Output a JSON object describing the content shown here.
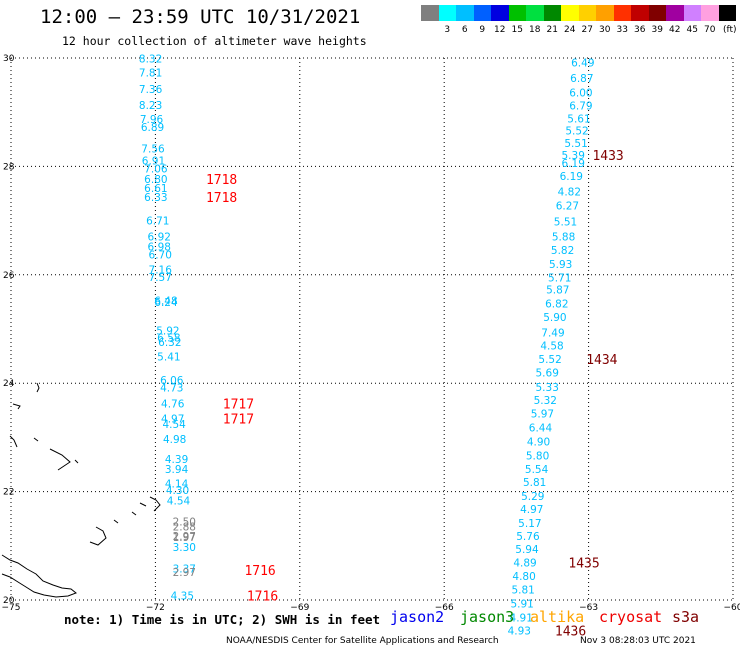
{
  "header": {
    "title": "12:00 — 23:59 UTC 10/31/2021",
    "subtitle": "12 hour collection of altimeter wave heights"
  },
  "colorbar": {
    "unit_label": "(ft)",
    "bins": [
      {
        "label": "",
        "color": "#7f7f7f"
      },
      {
        "label": "3",
        "color": "#00ffff"
      },
      {
        "label": "6",
        "color": "#00bfff"
      },
      {
        "label": "9",
        "color": "#0060ff"
      },
      {
        "label": "12",
        "color": "#0000e0"
      },
      {
        "label": "15",
        "color": "#00c000"
      },
      {
        "label": "18",
        "color": "#00e040"
      },
      {
        "label": "21",
        "color": "#008800"
      },
      {
        "label": "24",
        "color": "#ffff00"
      },
      {
        "label": "27",
        "color": "#ffd000"
      },
      {
        "label": "30",
        "color": "#ffa000"
      },
      {
        "label": "33",
        "color": "#ff3000"
      },
      {
        "label": "36",
        "color": "#c00000"
      },
      {
        "label": "39",
        "color": "#800000"
      },
      {
        "label": "42",
        "color": "#a000a0"
      },
      {
        "label": "45",
        "color": "#d080ff"
      },
      {
        "label": "70",
        "color": "#ffa0e0"
      },
      {
        "label": "",
        "color": "#000000"
      }
    ]
  },
  "map": {
    "lon_ticks": [
      "−75",
      "−72",
      "−69",
      "−66",
      "−63",
      "−60"
    ],
    "lat_ticks": [
      "20",
      "22",
      "24",
      "26",
      "28",
      "30"
    ]
  },
  "track_west": [
    {
      "v": "8.32",
      "lat": 29.99,
      "lon": -72.1
    },
    {
      "v": "7.81",
      "lat": 29.73,
      "lon": -72.1
    },
    {
      "v": "7.36",
      "lat": 29.43,
      "lon": -72.1
    },
    {
      "v": "8.23",
      "lat": 29.13,
      "lon": -72.1
    },
    {
      "v": "7.96",
      "lat": 28.87,
      "lon": -72.08
    },
    {
      "v": "6.89",
      "lat": 28.73,
      "lon": -72.06
    },
    {
      "v": "7.56",
      "lat": 28.33,
      "lon": -72.05
    },
    {
      "v": "6.91",
      "lat": 28.11,
      "lon": -72.04
    },
    {
      "v": "7.06",
      "lat": 27.96,
      "lon": -71.99
    },
    {
      "v": "6.80",
      "lat": 27.77,
      "lon": -71.99
    },
    {
      "v": "6.61",
      "lat": 27.6,
      "lon": -71.99
    },
    {
      "v": "6.33",
      "lat": 27.44,
      "lon": -71.99
    },
    {
      "v": "6.71",
      "lat": 27.0,
      "lon": -71.95
    },
    {
      "v": "6.92",
      "lat": 26.71,
      "lon": -71.92
    },
    {
      "v": "6.98",
      "lat": 26.52,
      "lon": -71.92
    },
    {
      "v": "6.70",
      "lat": 26.37,
      "lon": -71.9
    },
    {
      "v": "7.16",
      "lat": 26.1,
      "lon": -71.9
    },
    {
      "v": "7.57",
      "lat": 25.96,
      "lon": -71.9
    },
    {
      "v": "6.48",
      "lat": 25.53,
      "lon": -71.78
    },
    {
      "v": "6.24",
      "lat": 25.5,
      "lon": -71.78
    },
    {
      "v": "5.92",
      "lat": 24.97,
      "lon": -71.74
    },
    {
      "v": "6.58",
      "lat": 24.84,
      "lon": -71.72
    },
    {
      "v": "6.32",
      "lat": 24.76,
      "lon": -71.7
    },
    {
      "v": "5.41",
      "lat": 24.49,
      "lon": -71.72
    },
    {
      "v": "6.06",
      "lat": 24.06,
      "lon": -71.66
    },
    {
      "v": "4.73",
      "lat": 23.92,
      "lon": -71.66
    },
    {
      "v": "4.76",
      "lat": 23.63,
      "lon": -71.64
    },
    {
      "v": "4.97",
      "lat": 23.35,
      "lon": -71.64
    },
    {
      "v": "4.54",
      "lat": 23.25,
      "lon": -71.61
    },
    {
      "v": "4.98",
      "lat": 22.97,
      "lon": -71.6
    },
    {
      "v": "4.39",
      "lat": 22.6,
      "lon": -71.56
    },
    {
      "v": "3.94",
      "lat": 22.42,
      "lon": -71.56
    },
    {
      "v": "4.14",
      "lat": 22.15,
      "lon": -71.56
    },
    {
      "v": "4.30",
      "lat": 22.03,
      "lon": -71.54
    },
    {
      "v": "4.54",
      "lat": 21.84,
      "lon": -71.52
    },
    {
      "v": "2.50",
      "lat": 21.45,
      "lon": -71.4,
      "gray": true
    },
    {
      "v": "2.88",
      "lat": 21.36,
      "lon": -71.4,
      "gray": true
    },
    {
      "v": "2.97",
      "lat": 21.18,
      "lon": -71.4,
      "gray": true
    },
    {
      "v": "1.97",
      "lat": 21.16,
      "lon": -71.4,
      "gray": true
    },
    {
      "v": "3.30",
      "lat": 20.98,
      "lon": -71.4
    },
    {
      "v": "3.37",
      "lat": 20.58,
      "lon": -71.4
    },
    {
      "v": "2.97",
      "lat": 20.52,
      "lon": -71.4,
      "gray": true
    },
    {
      "v": "4.35",
      "lat": 20.08,
      "lon": -71.44
    }
  ],
  "track_east": [
    {
      "v": "6.49",
      "lat": 29.92,
      "lon": -63.12
    },
    {
      "v": "6.87",
      "lat": 29.63,
      "lon": -63.14
    },
    {
      "v": "6.00",
      "lat": 29.36,
      "lon": -63.16
    },
    {
      "v": "6.79",
      "lat": 29.12,
      "lon": -63.16
    },
    {
      "v": "5.61",
      "lat": 28.88,
      "lon": -63.2
    },
    {
      "v": "5.52",
      "lat": 28.66,
      "lon": -63.24
    },
    {
      "v": "5.51",
      "lat": 28.43,
      "lon": -63.26
    },
    {
      "v": "5.39",
      "lat": 28.21,
      "lon": -63.32
    },
    {
      "v": "6.19",
      "lat": 28.06,
      "lon": -63.32
    },
    {
      "v": "6.19",
      "lat": 27.82,
      "lon": -63.36
    },
    {
      "v": "4.82",
      "lat": 27.54,
      "lon": -63.4
    },
    {
      "v": "6.27",
      "lat": 27.28,
      "lon": -63.44
    },
    {
      "v": "5.51",
      "lat": 26.98,
      "lon": -63.48
    },
    {
      "v": "5.88",
      "lat": 26.71,
      "lon": -63.52
    },
    {
      "v": "5.82",
      "lat": 26.46,
      "lon": -63.54
    },
    {
      "v": "5.93",
      "lat": 26.2,
      "lon": -63.58
    },
    {
      "v": "5.71",
      "lat": 25.95,
      "lon": -63.6
    },
    {
      "v": "5.87",
      "lat": 25.73,
      "lon": -63.64
    },
    {
      "v": "6.82",
      "lat": 25.47,
      "lon": -63.66
    },
    {
      "v": "5.90",
      "lat": 25.22,
      "lon": -63.7
    },
    {
      "v": "7.49",
      "lat": 24.94,
      "lon": -63.74
    },
    {
      "v": "4.58",
      "lat": 24.7,
      "lon": -63.76
    },
    {
      "v": "5.52",
      "lat": 24.45,
      "lon": -63.8
    },
    {
      "v": "5.69",
      "lat": 24.2,
      "lon": -63.86
    },
    {
      "v": "5.33",
      "lat": 23.93,
      "lon": -63.86
    },
    {
      "v": "5.32",
      "lat": 23.69,
      "lon": -63.9
    },
    {
      "v": "5.97",
      "lat": 23.44,
      "lon": -63.96
    },
    {
      "v": "6.44",
      "lat": 23.18,
      "lon": -64.0
    },
    {
      "v": "4.90",
      "lat": 22.92,
      "lon": -64.04
    },
    {
      "v": "5.80",
      "lat": 22.67,
      "lon": -64.06
    },
    {
      "v": "5.54",
      "lat": 22.42,
      "lon": -64.08
    },
    {
      "v": "5.81",
      "lat": 22.18,
      "lon": -64.12
    },
    {
      "v": "5.29",
      "lat": 21.92,
      "lon": -64.16
    },
    {
      "v": "4.97",
      "lat": 21.68,
      "lon": -64.18
    },
    {
      "v": "5.17",
      "lat": 21.42,
      "lon": -64.22
    },
    {
      "v": "5.76",
      "lat": 21.18,
      "lon": -64.26
    },
    {
      "v": "5.94",
      "lat": 20.94,
      "lon": -64.28
    },
    {
      "v": "4.89",
      "lat": 20.69,
      "lon": -64.32
    },
    {
      "v": "4.80",
      "lat": 20.44,
      "lon": -64.34
    },
    {
      "v": "5.81",
      "lat": 20.19,
      "lon": -64.36
    },
    {
      "v": "5.91",
      "lat": 19.94,
      "lon": -64.38
    },
    {
      "v": "4.91",
      "lat": 19.68,
      "lon": -64.4
    },
    {
      "v": "4.93",
      "lat": 19.44,
      "lon": -64.44
    }
  ],
  "pass_times": [
    {
      "label": "1718",
      "lat": 27.77,
      "lon": -70.95,
      "color": "#ff0000"
    },
    {
      "label": "1718",
      "lat": 27.44,
      "lon": -70.95,
      "color": "#ff0000"
    },
    {
      "label": "1717",
      "lat": 23.63,
      "lon": -70.6,
      "color": "#ff0000"
    },
    {
      "label": "1717",
      "lat": 23.35,
      "lon": -70.6,
      "color": "#ff0000"
    },
    {
      "label": "1716",
      "lat": 20.55,
      "lon": -70.15,
      "color": "#ff0000"
    },
    {
      "label": "1716",
      "lat": 20.08,
      "lon": -70.1,
      "color": "#ff0000"
    },
    {
      "label": "1433",
      "lat": 28.21,
      "lon": -62.92,
      "color": "#800000"
    },
    {
      "label": "1434",
      "lat": 24.45,
      "lon": -63.05,
      "color": "#800000"
    },
    {
      "label": "1435",
      "lat": 20.69,
      "lon": -63.42,
      "color": "#800000"
    },
    {
      "label": "1436",
      "lat": 19.44,
      "lon": -63.7,
      "color": "#800000"
    }
  ],
  "footer": {
    "note": "note: 1) Time is in UTC; 2) SWH is in feet",
    "legend": [
      {
        "name": "jason2",
        "color": "#0000ee"
      },
      {
        "name": "jason3",
        "color": "#008800"
      },
      {
        "name": "altika",
        "color": "#ffa500"
      },
      {
        "name": "cryosat",
        "color": "#ee0000"
      },
      {
        "name": "s3a",
        "color": "#800000"
      }
    ],
    "credit": "NOAA/NESDIS Center for Satellite Applications and Research",
    "timestamp": "Nov  3 08:28:03 UTC 2021"
  }
}
